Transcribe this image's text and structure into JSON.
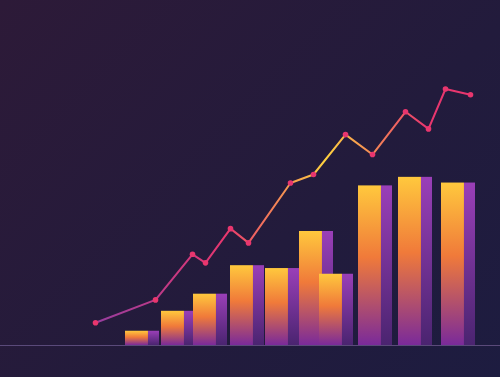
{
  "chart_data": {
    "type": "bar",
    "tick_labels": false,
    "grid": false,
    "xlim": [
      0,
      100
    ],
    "ylim": [
      0,
      100
    ],
    "series": [
      {
        "type": "bar",
        "color": "#ffc83d",
        "x": [
          28.4,
          35.6,
          42,
          49.4,
          56.4,
          63.2,
          67.2,
          75,
          83,
          91.6
        ],
        "values": [
          5,
          12,
          18,
          28,
          27,
          40,
          25,
          56,
          59,
          57
        ]
      },
      {
        "type": "line",
        "color": "#e8366e",
        "marker": "circle",
        "x": [
          19,
          31,
          38.4,
          41,
          46,
          49.6,
          58,
          62.6,
          69,
          74.4,
          81,
          85.6,
          89,
          94
        ],
        "values": [
          8,
          16,
          32,
          29,
          41,
          36,
          57,
          60,
          74,
          67,
          82,
          76,
          90,
          88
        ]
      }
    ]
  }
}
